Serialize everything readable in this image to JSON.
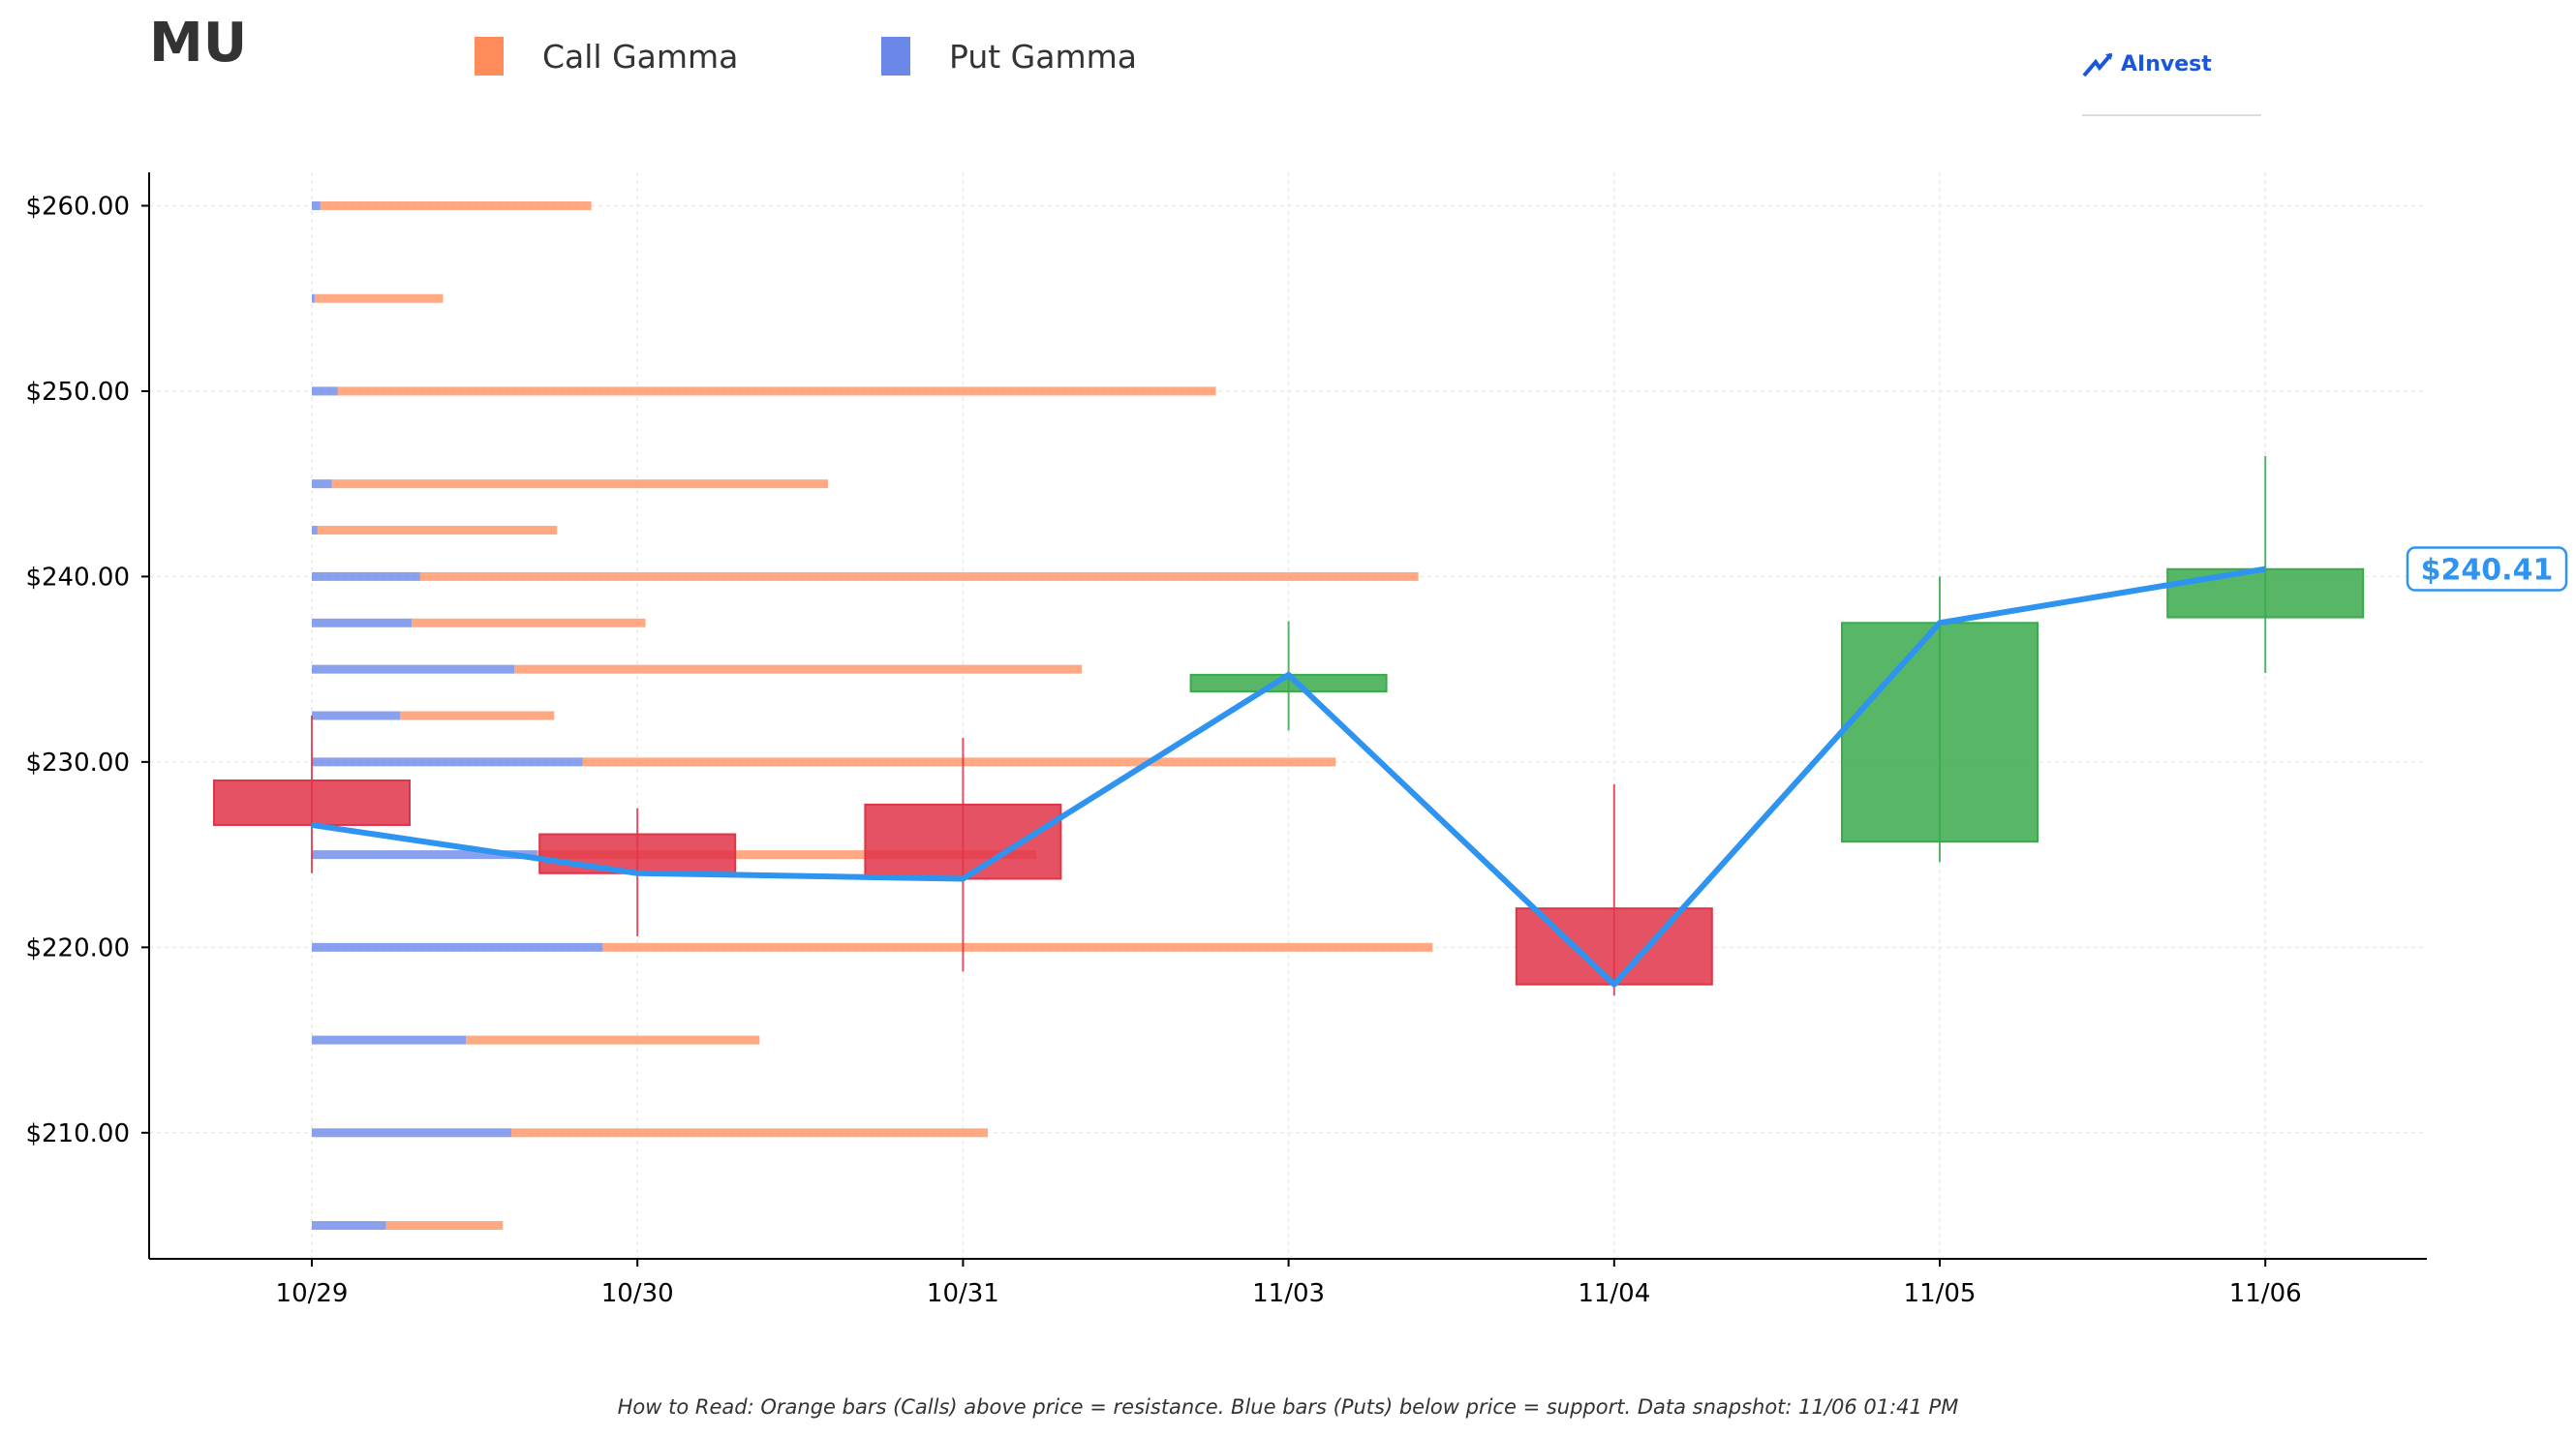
{
  "header": {
    "ticker": "MU",
    "legend": [
      {
        "label": "Call Gamma",
        "color": "#ff8c5a"
      },
      {
        "label": "Put Gamma",
        "color": "#6b88e8"
      }
    ],
    "brand": {
      "label": "AInvest",
      "icon": "ainvest-logo-icon"
    }
  },
  "footer": {
    "note": "How to Read: Orange bars (Calls) above price = resistance. Blue bars (Puts) below price = support. Data snapshot: 11/06 01:41 PM"
  },
  "chart_data": {
    "type": "candlestick",
    "categories": [
      "10/29",
      "10/30",
      "10/31",
      "11/03",
      "11/04",
      "11/05",
      "11/06"
    ],
    "ylim": [
      203.2,
      261.8
    ],
    "yticks": [
      210,
      220,
      230,
      240,
      250,
      260
    ],
    "ytick_labels": [
      "$210.00",
      "$220.00",
      "$230.00",
      "$240.00",
      "$250.00",
      "$260.00"
    ],
    "candles": [
      {
        "date": "10/29",
        "open": 229.0,
        "close": 226.6,
        "high": 232.5,
        "low": 224.0
      },
      {
        "date": "10/30",
        "open": 226.1,
        "close": 224.0,
        "high": 227.5,
        "low": 220.6
      },
      {
        "date": "10/31",
        "open": 227.7,
        "close": 223.7,
        "high": 231.3,
        "low": 218.7
      },
      {
        "date": "11/03",
        "open": 233.8,
        "close": 234.7,
        "high": 237.6,
        "low": 231.7
      },
      {
        "date": "11/04",
        "open": 222.1,
        "close": 218.0,
        "high": 228.8,
        "low": 217.4
      },
      {
        "date": "11/05",
        "open": 225.7,
        "close": 237.5,
        "high": 240.0,
        "low": 224.6
      },
      {
        "date": "11/06",
        "open": 237.8,
        "close": 240.4,
        "high": 246.5,
        "low": 234.8
      }
    ],
    "close_line": [
      226.6,
      224.0,
      223.7,
      234.7,
      218.0,
      237.5,
      240.41
    ],
    "last_price_label": "$240.41",
    "gamma_levels": [
      {
        "strike": 205.0,
        "put": 2.6,
        "call": 4.1
      },
      {
        "strike": 210.0,
        "put": 7.0,
        "call": 16.7
      },
      {
        "strike": 215.0,
        "put": 5.4,
        "call": 10.3
      },
      {
        "strike": 220.0,
        "put": 10.2,
        "call": 29.1
      },
      {
        "strike": 225.0,
        "put": 7.9,
        "call": 17.5
      },
      {
        "strike": 230.0,
        "put": 9.5,
        "call": 26.4
      },
      {
        "strike": 232.5,
        "put": 3.1,
        "call": 5.4
      },
      {
        "strike": 235.0,
        "put": 7.1,
        "call": 19.9
      },
      {
        "strike": 237.5,
        "put": 3.5,
        "call": 8.2
      },
      {
        "strike": 240.0,
        "put": 3.8,
        "call": 35.0
      },
      {
        "strike": 242.5,
        "put": 0.2,
        "call": 8.4
      },
      {
        "strike": 245.0,
        "put": 0.7,
        "call": 17.4
      },
      {
        "strike": 250.0,
        "put": 0.9,
        "call": 30.8
      },
      {
        "strike": 255.0,
        "put": 0.1,
        "call": 4.5
      },
      {
        "strike": 260.0,
        "put": 0.3,
        "call": 9.5
      }
    ],
    "colors": {
      "up": "#3aaa4b",
      "down": "#e03448",
      "line": "#2f93f0",
      "call": "#ff8c5a",
      "put": "#6b88e8",
      "label_border": "#2f93f0"
    },
    "grid": true,
    "legend_position": "top-left"
  }
}
